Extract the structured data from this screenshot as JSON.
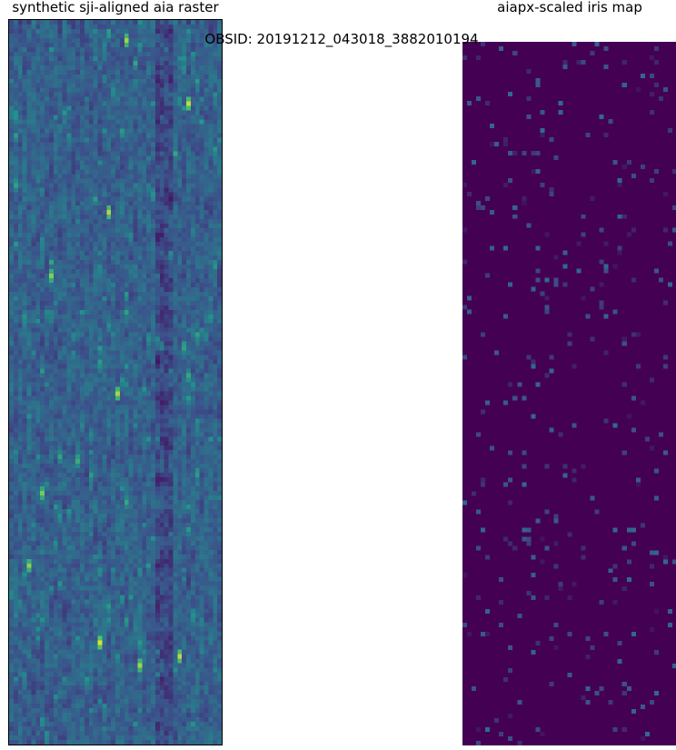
{
  "figure": {
    "suptitle": "OBSID: 20191212_043018_3882010194"
  },
  "chart_data": [
    {
      "type": "heatmap",
      "title": "synthetic sji-aligned aia raster",
      "xlabel": "",
      "ylabel": "",
      "colormap": "viridis",
      "axes_visible": false,
      "grid": false,
      "legend": "none",
      "grid_shape": [
        160,
        48
      ],
      "value_range": [
        0,
        1
      ],
      "typical_value": 0.3,
      "bright_spots": [
        {
          "row": 4,
          "col": 26,
          "value": 0.85
        },
        {
          "row": 18,
          "col": 40,
          "value": 0.9
        },
        {
          "row": 42,
          "col": 22,
          "value": 0.88
        },
        {
          "row": 56,
          "col": 9,
          "value": 0.8
        },
        {
          "row": 82,
          "col": 24,
          "value": 0.86
        },
        {
          "row": 104,
          "col": 7,
          "value": 0.78
        },
        {
          "row": 120,
          "col": 4,
          "value": 0.82
        },
        {
          "row": 137,
          "col": 20,
          "value": 0.95
        },
        {
          "row": 140,
          "col": 38,
          "value": 0.9
        },
        {
          "row": 142,
          "col": 29,
          "value": 0.85
        }
      ],
      "dark_band_columns": [
        33,
        34,
        35,
        36
      ]
    },
    {
      "type": "heatmap",
      "title": "aiapx-scaled iris map",
      "xlabel": "",
      "ylabel": "",
      "colormap": "viridis",
      "axes_visible": false,
      "grid": false,
      "legend": "none",
      "grid_shape": [
        155,
        47
      ],
      "value_range": [
        0,
        1
      ],
      "typical_value": 0.0,
      "sparse_pixel_fraction": 0.05,
      "sparse_pixel_value_range": [
        0.05,
        0.35
      ]
    }
  ],
  "colors": {
    "background": "#ffffff",
    "viridis_low": "#440154",
    "viridis_mid": "#21918c",
    "viridis_high": "#fde725"
  }
}
